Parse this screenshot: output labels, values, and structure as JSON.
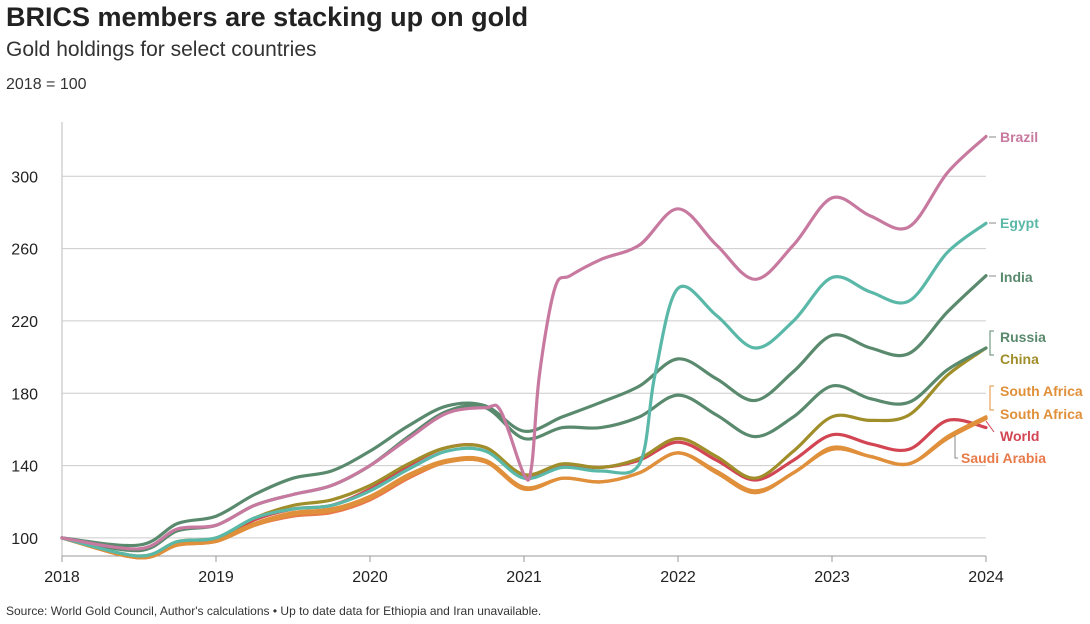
{
  "header": {
    "title": "BRICS members are stacking up on gold",
    "subtitle": "Gold holdings for select countries",
    "note": "2018 = 100"
  },
  "footer": {
    "source": "Source: World Gold Council, Author's calculations • Up to date data for Ethiopia and Iran unavailable."
  },
  "chart_data": {
    "type": "line",
    "title": "BRICS members are stacking up on gold",
    "subtitle": "Gold holdings for select countries",
    "xlabel": "",
    "ylabel": "",
    "xlim": [
      2018,
      2024
    ],
    "ylim": [
      90,
      330
    ],
    "x_ticks": [
      "2018",
      "2019",
      "2020",
      "2021",
      "2022",
      "2023",
      "2024"
    ],
    "y_ticks": [
      "100",
      "140",
      "180",
      "220",
      "260",
      "300"
    ],
    "grid": "horizontal",
    "legend": "direct labels at right end of lines",
    "series": [
      {
        "name": "Brazil",
        "color": "#c8799f",
        "points": [
          [
            2018,
            100
          ],
          [
            2018.5,
            94
          ],
          [
            2018.75,
            105
          ],
          [
            2019,
            107
          ],
          [
            2019.25,
            118
          ],
          [
            2019.5,
            124
          ],
          [
            2019.75,
            129
          ],
          [
            2020,
            140
          ],
          [
            2020.25,
            155
          ],
          [
            2020.5,
            169
          ],
          [
            2020.75,
            172
          ],
          [
            2020.85,
            170
          ],
          [
            2021,
            135
          ],
          [
            2021.05,
            140
          ],
          [
            2021.1,
            190
          ],
          [
            2021.2,
            238
          ],
          [
            2021.3,
            245
          ],
          [
            2021.5,
            254
          ],
          [
            2021.75,
            262
          ],
          [
            2022,
            282
          ],
          [
            2022.25,
            262
          ],
          [
            2022.5,
            243
          ],
          [
            2022.75,
            262
          ],
          [
            2023,
            288
          ],
          [
            2023.25,
            278
          ],
          [
            2023.5,
            272
          ],
          [
            2023.75,
            302
          ],
          [
            2024,
            322
          ]
        ]
      },
      {
        "name": "Egypt",
        "color": "#5ab8a8",
        "points": [
          [
            2018,
            100
          ],
          [
            2018.5,
            90
          ],
          [
            2018.75,
            98
          ],
          [
            2019,
            100
          ],
          [
            2019.25,
            111
          ],
          [
            2019.5,
            116
          ],
          [
            2019.75,
            118
          ],
          [
            2020,
            126
          ],
          [
            2020.25,
            138
          ],
          [
            2020.5,
            148
          ],
          [
            2020.75,
            148
          ],
          [
            2021,
            133
          ],
          [
            2021.25,
            139
          ],
          [
            2021.5,
            137
          ],
          [
            2021.75,
            141
          ],
          [
            2021.85,
            190
          ],
          [
            2022,
            238
          ],
          [
            2022.25,
            223
          ],
          [
            2022.5,
            205
          ],
          [
            2022.75,
            220
          ],
          [
            2023,
            244
          ],
          [
            2023.25,
            236
          ],
          [
            2023.5,
            231
          ],
          [
            2023.75,
            258
          ],
          [
            2024,
            274
          ]
        ]
      },
      {
        "name": "India",
        "color": "#5a8a6e",
        "points": [
          [
            2018,
            100
          ],
          [
            2018.5,
            96
          ],
          [
            2018.75,
            108
          ],
          [
            2019,
            112
          ],
          [
            2019.25,
            124
          ],
          [
            2019.5,
            133
          ],
          [
            2019.75,
            137
          ],
          [
            2020,
            148
          ],
          [
            2020.25,
            162
          ],
          [
            2020.5,
            173
          ],
          [
            2020.75,
            173
          ],
          [
            2021,
            159
          ],
          [
            2021.25,
            167
          ],
          [
            2021.5,
            175
          ],
          [
            2021.75,
            184
          ],
          [
            2022,
            199
          ],
          [
            2022.25,
            188
          ],
          [
            2022.5,
            176
          ],
          [
            2022.75,
            192
          ],
          [
            2023,
            212
          ],
          [
            2023.25,
            205
          ],
          [
            2023.5,
            202
          ],
          [
            2023.75,
            225
          ],
          [
            2024,
            245
          ]
        ]
      },
      {
        "name": "Russia",
        "color": "#5a8a6e",
        "points": [
          [
            2018,
            100
          ],
          [
            2018.5,
            93
          ],
          [
            2018.75,
            104
          ],
          [
            2019,
            107
          ],
          [
            2019.25,
            118
          ],
          [
            2019.5,
            124
          ],
          [
            2019.75,
            129
          ],
          [
            2020,
            140
          ],
          [
            2020.25,
            156
          ],
          [
            2020.5,
            170
          ],
          [
            2020.75,
            172
          ],
          [
            2021,
            155
          ],
          [
            2021.25,
            161
          ],
          [
            2021.5,
            161
          ],
          [
            2021.75,
            167
          ],
          [
            2022,
            179
          ],
          [
            2022.25,
            168
          ],
          [
            2022.5,
            156
          ],
          [
            2022.75,
            167
          ],
          [
            2023,
            184
          ],
          [
            2023.25,
            177
          ],
          [
            2023.5,
            175
          ],
          [
            2023.75,
            193
          ],
          [
            2024,
            205
          ]
        ]
      },
      {
        "name": "China",
        "color": "#a08e2a",
        "points": [
          [
            2018,
            100
          ],
          [
            2018.5,
            90
          ],
          [
            2018.75,
            98
          ],
          [
            2019,
            100
          ],
          [
            2019.25,
            111
          ],
          [
            2019.5,
            118
          ],
          [
            2019.75,
            121
          ],
          [
            2020,
            129
          ],
          [
            2020.25,
            141
          ],
          [
            2020.5,
            150
          ],
          [
            2020.75,
            150
          ],
          [
            2021,
            135
          ],
          [
            2021.25,
            141
          ],
          [
            2021.5,
            139
          ],
          [
            2021.75,
            144
          ],
          [
            2022,
            155
          ],
          [
            2022.25,
            145
          ],
          [
            2022.5,
            133
          ],
          [
            2022.75,
            148
          ],
          [
            2023,
            167
          ],
          [
            2023.25,
            165
          ],
          [
            2023.5,
            168
          ],
          [
            2023.75,
            190
          ],
          [
            2024,
            205
          ]
        ]
      },
      {
        "name": "South Africa",
        "color": "#e0903a",
        "points": [
          [
            2018,
            100
          ],
          [
            2018.5,
            89
          ],
          [
            2018.75,
            97
          ],
          [
            2019,
            99
          ],
          [
            2019.25,
            108
          ],
          [
            2019.5,
            114
          ],
          [
            2019.75,
            116
          ],
          [
            2020,
            123
          ],
          [
            2020.25,
            135
          ],
          [
            2020.5,
            143
          ],
          [
            2020.75,
            143
          ],
          [
            2021,
            128
          ],
          [
            2021.25,
            133
          ],
          [
            2021.5,
            131
          ],
          [
            2021.75,
            136
          ],
          [
            2022,
            147
          ],
          [
            2022.25,
            137
          ],
          [
            2022.5,
            126
          ],
          [
            2022.75,
            136
          ],
          [
            2023,
            150
          ],
          [
            2023.25,
            145
          ],
          [
            2023.5,
            141
          ],
          [
            2023.75,
            156
          ],
          [
            2024,
            167
          ]
        ]
      },
      {
        "name": "South Africa",
        "color": "#e0903a",
        "points": [
          [
            2018,
            100
          ],
          [
            2018.5,
            89
          ],
          [
            2018.75,
            96
          ],
          [
            2019,
            98
          ],
          [
            2019.25,
            107
          ],
          [
            2019.5,
            113
          ],
          [
            2019.75,
            115
          ],
          [
            2020,
            122
          ],
          [
            2020.25,
            134
          ],
          [
            2020.5,
            142
          ],
          [
            2020.75,
            142
          ],
          [
            2021,
            127
          ],
          [
            2021.25,
            133
          ],
          [
            2021.5,
            131
          ],
          [
            2021.75,
            136
          ],
          [
            2022,
            147
          ],
          [
            2022.25,
            136
          ],
          [
            2022.5,
            125
          ],
          [
            2022.75,
            136
          ],
          [
            2023,
            149
          ],
          [
            2023.25,
            145
          ],
          [
            2023.5,
            141
          ],
          [
            2023.75,
            155
          ],
          [
            2024,
            166
          ]
        ]
      },
      {
        "name": "World",
        "color": "#d24552",
        "points": [
          [
            2018,
            100
          ],
          [
            2018.5,
            89
          ],
          [
            2018.75,
            97
          ],
          [
            2019,
            99
          ],
          [
            2019.25,
            110
          ],
          [
            2019.5,
            116
          ],
          [
            2019.75,
            118
          ],
          [
            2020,
            127
          ],
          [
            2020.25,
            140
          ],
          [
            2020.5,
            150
          ],
          [
            2020.75,
            150
          ],
          [
            2021,
            134
          ],
          [
            2021.25,
            140
          ],
          [
            2021.5,
            139
          ],
          [
            2021.75,
            143
          ],
          [
            2022,
            153
          ],
          [
            2022.25,
            143
          ],
          [
            2022.5,
            132
          ],
          [
            2022.75,
            143
          ],
          [
            2023,
            157
          ],
          [
            2023.25,
            152
          ],
          [
            2023.5,
            149
          ],
          [
            2023.75,
            165
          ],
          [
            2024,
            161
          ]
        ]
      },
      {
        "name": "Saudi Arabia",
        "color": "#e87a4a",
        "points": [
          [
            2018,
            100
          ],
          [
            2018.5,
            89
          ],
          [
            2018.75,
            96
          ],
          [
            2019,
            98
          ],
          [
            2019.25,
            107
          ],
          [
            2019.5,
            112
          ],
          [
            2019.75,
            114
          ],
          [
            2020,
            121
          ],
          [
            2020.25,
            133
          ],
          [
            2020.5,
            142
          ],
          [
            2020.75,
            142
          ],
          [
            2021,
            127
          ],
          [
            2021.25,
            133
          ],
          [
            2021.5,
            131
          ],
          [
            2021.75,
            136
          ],
          [
            2022,
            147
          ],
          [
            2022.25,
            136
          ],
          [
            2022.5,
            125
          ],
          [
            2022.75,
            136
          ],
          [
            2023,
            149
          ],
          [
            2023.25,
            145
          ],
          [
            2023.5,
            141
          ],
          [
            2023.75,
            155
          ],
          [
            2024,
            166
          ]
        ]
      }
    ],
    "labels": [
      {
        "text": "Brazil",
        "color": "#c8799f",
        "value": 322
      },
      {
        "text": "Egypt",
        "color": "#5ab8a8",
        "value": 274
      },
      {
        "text": "India",
        "color": "#5a8a6e",
        "value": 245
      },
      {
        "text": "Russia",
        "color": "#5a8a6e",
        "value": 205
      },
      {
        "text": "China",
        "color": "#a08e2a",
        "value": 205
      },
      {
        "text": "South Africa",
        "color": "#e0903a",
        "value": 167
      },
      {
        "text": "South Africa",
        "color": "#e0903a",
        "value": 166
      },
      {
        "text": "World",
        "color": "#d24552",
        "value": 161
      },
      {
        "text": "Saudi Arabia",
        "color": "#e87a4a",
        "value": 166
      }
    ]
  }
}
